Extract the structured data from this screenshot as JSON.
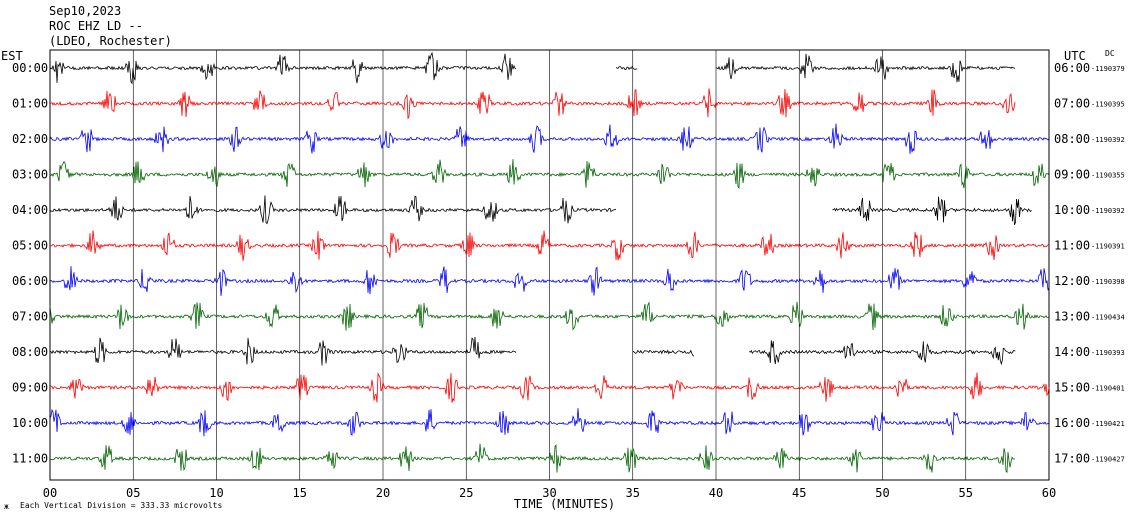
{
  "header": {
    "date": "Sep10,2023",
    "station": "ROC EHZ LD --",
    "network": "(LDEO, Rochester)"
  },
  "left_timezone": "EST",
  "right_timezone": "UTC",
  "dc_label": "DC",
  "footer_note": "Each Vertical Division =  333.33 microvolts",
  "chart_data": {
    "type": "line",
    "xlabel": "TIME (MINUTES)",
    "xlim": [
      0,
      60
    ],
    "x_ticks": [
      "00",
      "05",
      "10",
      "15",
      "20",
      "25",
      "30",
      "35",
      "40",
      "45",
      "50",
      "55",
      "60"
    ],
    "trace_colors": [
      "#000000",
      "#ff0000",
      "#0000ff",
      "#006400"
    ],
    "rows": [
      {
        "est": "00:00",
        "utc": "06:00",
        "dc": "-1190379",
        "color": "#000000",
        "segments": [
          [
            0,
            28
          ],
          [
            34,
            35.3
          ],
          [
            40,
            58
          ]
        ]
      },
      {
        "est": "01:00",
        "utc": "07:00",
        "dc": "-1190395",
        "color": "#ff0000",
        "segments": [
          [
            0,
            58
          ]
        ]
      },
      {
        "est": "02:00",
        "utc": "08:00",
        "dc": "-1190392",
        "color": "#0000ff",
        "segments": [
          [
            0,
            60
          ]
        ]
      },
      {
        "est": "03:00",
        "utc": "09:00",
        "dc": "-1190355",
        "color": "#006400",
        "segments": [
          [
            0,
            60
          ]
        ]
      },
      {
        "est": "04:00",
        "utc": "10:00",
        "dc": "-1190392",
        "color": "#000000",
        "segments": [
          [
            0,
            34
          ],
          [
            47,
            59
          ]
        ]
      },
      {
        "est": "05:00",
        "utc": "11:00",
        "dc": "-1190391",
        "color": "#ff0000",
        "segments": [
          [
            0,
            60
          ]
        ]
      },
      {
        "est": "06:00",
        "utc": "12:00",
        "dc": "-1190398",
        "color": "#0000ff",
        "segments": [
          [
            0,
            60
          ]
        ]
      },
      {
        "est": "07:00",
        "utc": "13:00",
        "dc": "-1190434",
        "color": "#006400",
        "segments": [
          [
            0,
            60
          ]
        ]
      },
      {
        "est": "08:00",
        "utc": "14:00",
        "dc": "-1190393",
        "color": "#000000",
        "segments": [
          [
            0,
            28
          ],
          [
            35,
            38.7
          ],
          [
            42,
            58
          ]
        ]
      },
      {
        "est": "09:00",
        "utc": "15:00",
        "dc": "-1190401",
        "color": "#ff0000",
        "segments": [
          [
            0,
            60
          ]
        ]
      },
      {
        "est": "10:00",
        "utc": "16:00",
        "dc": "-1190421",
        "color": "#0000ff",
        "segments": [
          [
            0,
            60
          ]
        ]
      },
      {
        "est": "11:00",
        "utc": "17:00",
        "dc": "-1190427",
        "color": "#006400",
        "segments": [
          [
            0,
            58
          ]
        ]
      }
    ]
  }
}
